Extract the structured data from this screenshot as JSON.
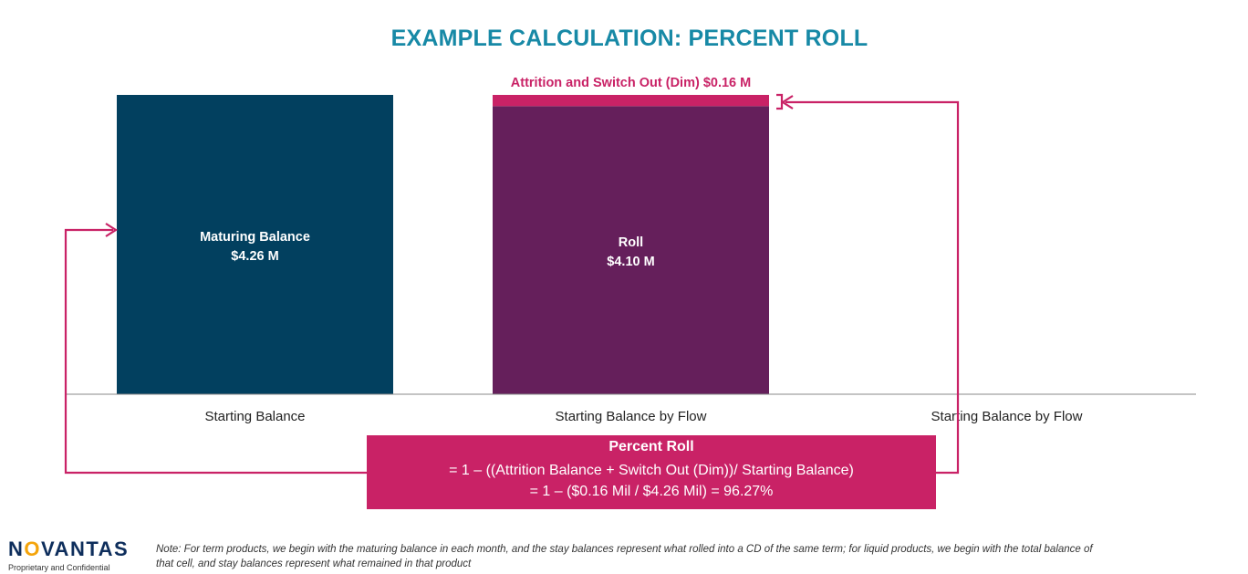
{
  "title": "EXAMPLE CALCULATION: PERCENT ROLL",
  "colors": {
    "title": "#1789a6",
    "maturing_bar": "#02405f",
    "roll_bar": "#651f5b",
    "attrition": "#c92266",
    "formula_box": "#c92266",
    "axis": "#888888"
  },
  "chart_data": {
    "type": "bar",
    "stacked": true,
    "categories": [
      "Starting Balance",
      "Starting Balance by Flow",
      "Starting Balance by Flow"
    ],
    "series": [
      {
        "name": "Maturing Balance",
        "values": [
          4.26,
          0,
          0
        ]
      },
      {
        "name": "Roll",
        "values": [
          0,
          4.1,
          0
        ]
      },
      {
        "name": "Attrition and Switch Out (Dim)",
        "values": [
          0,
          0.16,
          0
        ]
      }
    ],
    "ylim": [
      0,
      4.26
    ],
    "grid": false,
    "annotations": {
      "maturing_label": "Maturing Balance",
      "maturing_value": "$4.26 M",
      "roll_label": "Roll",
      "roll_value": "$4.10 M",
      "attrition_label": "Attrition and Switch Out (Dim) $0.16 M"
    }
  },
  "formula": {
    "heading": "Percent Roll",
    "line1": "= 1 – ((Attrition Balance + Switch Out (Dim))/ Starting Balance)",
    "line2": "= 1 – ($0.16 Mil / $4.26 Mil) = 96.27%"
  },
  "footer": {
    "logo_pre": "N",
    "logo_o": "O",
    "logo_post": "VANTAS",
    "tagline": "Proprietary and Confidential",
    "note": "Note: For term products, we begin with the maturing balance in each month, and the stay balances represent what rolled into a CD of the same term; for liquid products, we begin with the total balance of that cell, and stay balances represent what remained in that product"
  }
}
